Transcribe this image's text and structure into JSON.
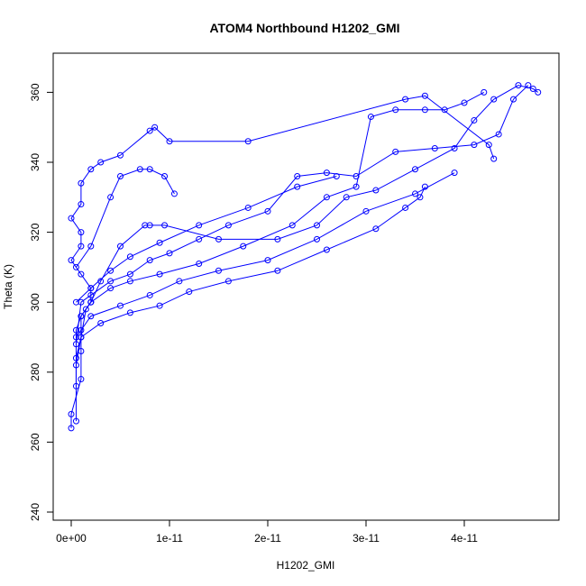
{
  "chart_data": {
    "type": "scatter",
    "title": "ATOM4 Northbound H1202_GMI",
    "xlabel": "H1202_GMI",
    "ylabel": "Theta (K)",
    "xlim": [
      0,
      4.8e-11
    ],
    "ylim": [
      240,
      368
    ],
    "x_ticks": [
      0,
      1e-11,
      2e-11,
      3e-11,
      4e-11
    ],
    "x_tick_labels": [
      "0e+00",
      "1e-11",
      "2e-11",
      "3e-11",
      "4e-11"
    ],
    "y_ticks": [
      240,
      260,
      280,
      300,
      320,
      340,
      360
    ],
    "y_tick_labels": [
      "240",
      "260",
      "280",
      "300",
      "320",
      "340",
      "360"
    ],
    "grid": false,
    "legend": "none",
    "marker": "open-circle",
    "line_style": "connected",
    "series_color": "#0000ff",
    "series": [
      {
        "x": [
          0.0,
          0.0,
          1e-12,
          1e-12,
          1e-12,
          1e-12,
          2e-12,
          2e-12,
          1e-12,
          0.0,
          1e-12,
          1e-12,
          0.0,
          1e-12,
          1e-12,
          2e-12,
          3e-12,
          5e-12,
          8e-12,
          8.5e-12,
          1e-11,
          1.8e-11,
          3.4e-11,
          3.6e-11,
          4.25e-11,
          4.3e-11
        ],
        "y": [
          264,
          268,
          278,
          286,
          292,
          296,
          300,
          304,
          308,
          312,
          316,
          320,
          324,
          328,
          334,
          338,
          340,
          342,
          349,
          350,
          346,
          346,
          358,
          359,
          345,
          341
        ]
      },
      {
        "x": [
          5e-13,
          5e-13,
          1e-12,
          1.5e-12,
          2e-12,
          3e-12,
          5e-12,
          7.5e-12,
          8e-12,
          9.5e-12,
          1.5e-11,
          2.1e-11,
          2.5e-11,
          2.8e-11,
          3.1e-11,
          3.5e-11,
          3.9e-11,
          4.1e-11,
          4.3e-11,
          4.55e-11,
          4.7e-11,
          4.75e-11
        ],
        "y": [
          266,
          282,
          290,
          298,
          300,
          306,
          316,
          322,
          322,
          322,
          318,
          318,
          322,
          330,
          332,
          338,
          344,
          352,
          358,
          362,
          361,
          360
        ]
      },
      {
        "x": [
          5e-13,
          5e-13,
          1e-12,
          2e-12,
          4e-12,
          6e-12,
          9e-12,
          1.3e-11,
          1.75e-11,
          2.25e-11,
          2.6e-11,
          2.9e-11,
          3.05e-11,
          3.3e-11,
          3.6e-11,
          3.8e-11,
          4e-11,
          4.2e-11
        ],
        "y": [
          276,
          292,
          296,
          300,
          304,
          306,
          308,
          311,
          316,
          322,
          330,
          333,
          353,
          355,
          355,
          355,
          357,
          360
        ]
      },
      {
        "x": [
          5e-13,
          1e-12,
          2e-12,
          4e-12,
          6e-12,
          8e-12,
          1e-11,
          1.3e-11,
          1.6e-11,
          2e-11,
          2.3e-11,
          2.6e-11,
          2.9e-11,
          3.3e-11,
          3.7e-11,
          4.1e-11,
          4.35e-11,
          4.5e-11,
          4.65e-11
        ],
        "y": [
          288,
          300,
          302,
          306,
          308,
          312,
          314,
          318,
          322,
          326,
          336,
          337,
          336,
          343,
          344,
          345,
          348,
          358,
          362
        ]
      },
      {
        "x": [
          5e-13,
          1e-12,
          3e-12,
          6e-12,
          9e-12,
          1.2e-11,
          1.6e-11,
          2.1e-11,
          2.6e-11,
          3.1e-11,
          3.4e-11,
          3.55e-11,
          3.6e-11
        ],
        "y": [
          284,
          290,
          294,
          297,
          299,
          303,
          306,
          309,
          315,
          321,
          327,
          330,
          333
        ]
      },
      {
        "x": [
          5e-13,
          2e-12,
          5e-12,
          8e-12,
          1.1e-11,
          1.5e-11,
          2e-11,
          2.5e-11,
          3e-11,
          3.5e-11,
          3.9e-11
        ],
        "y": [
          290,
          296,
          299,
          302,
          306,
          309,
          312,
          318,
          326,
          331,
          337
        ]
      },
      {
        "x": [
          5e-13,
          2e-12,
          4e-12,
          6e-12,
          9e-12,
          1.3e-11,
          1.8e-11,
          2.3e-11,
          2.7e-11
        ],
        "y": [
          300,
          304,
          309,
          313,
          317,
          322,
          327,
          333,
          336
        ]
      },
      {
        "x": [
          5e-13,
          2e-12,
          4e-12,
          5e-12,
          7e-12,
          8e-12,
          9.5e-12,
          1.05e-11
        ],
        "y": [
          310,
          316,
          330,
          336,
          338,
          338,
          336,
          331
        ]
      }
    ]
  }
}
